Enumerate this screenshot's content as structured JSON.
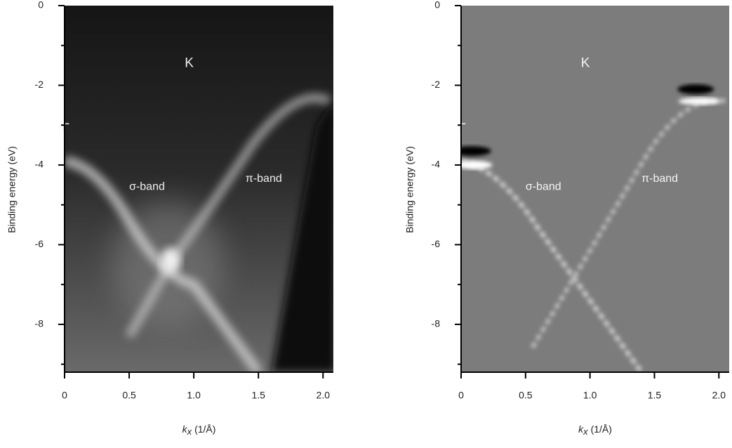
{
  "chart_data": [
    {
      "type": "image",
      "variant": "raw",
      "y_label": "Binding energy (eV)",
      "x_label": {
        "symbol": "k",
        "subscript": "x",
        "unit": "(1/Å)"
      },
      "xlim": [
        0,
        2.08
      ],
      "ylim": [
        -9.2,
        0
      ],
      "xticks": [
        0,
        0.5,
        {
          "value": 1,
          "label": "1.0"
        },
        1.5,
        {
          "value": 2,
          "label": "2.0"
        }
      ],
      "yticks": [
        0,
        -2,
        -4,
        -6,
        -8
      ],
      "yminorticks": [
        -1,
        -3,
        -5,
        -7,
        -9
      ],
      "annotations": [
        "K",
        "Γ",
        "σ-band",
        "π-band"
      ]
    },
    {
      "type": "image",
      "variant": "derivative",
      "y_label": "Binding energy (eV)",
      "x_label": {
        "symbol": "k",
        "subscript": "x",
        "unit": "(1/Å)"
      },
      "xlim": [
        0,
        2.08
      ],
      "ylim": [
        -9.2,
        0
      ],
      "xticks": [
        0,
        0.5,
        {
          "value": 1,
          "label": "1.0"
        },
        1.5,
        {
          "value": 2,
          "label": "2.0"
        }
      ],
      "yticks": [
        0,
        -2,
        -4,
        -6,
        -8
      ],
      "yminorticks": [
        -1,
        -3,
        -5,
        -7,
        -9
      ],
      "annotations": [
        "K",
        "Γ",
        "σ-band",
        "π-band"
      ]
    }
  ]
}
